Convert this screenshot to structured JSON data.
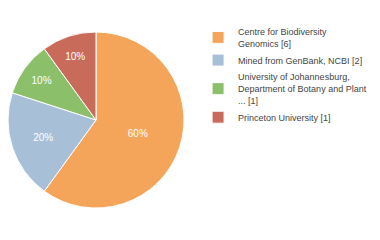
{
  "chart_data": {
    "type": "pie",
    "categories": [
      "Centre for Biodiversity\nGenomics [6]",
      "Mined from GenBank, NCBI [2]",
      "University of Johannesburg,\nDepartment of Botany and Plant\n... [1]",
      "Princeton University [1]"
    ],
    "values": [
      60,
      20,
      10,
      10
    ],
    "value_labels": [
      "60%",
      "20%",
      "10%",
      "10%"
    ],
    "colors": [
      "#F5A55A",
      "#A8BFD8",
      "#8CBF6A",
      "#C96B5A"
    ],
    "data_labels": true,
    "legend": "right"
  }
}
